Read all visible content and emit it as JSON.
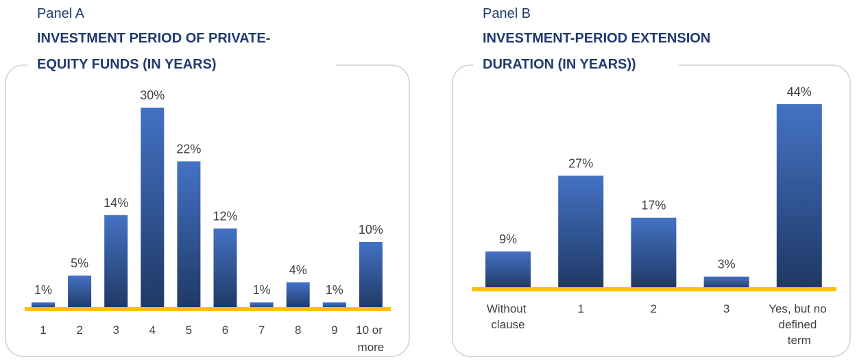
{
  "chart_data": [
    {
      "type": "bar",
      "panel": "Panel A",
      "title": [
        "INVESTMENT PERIOD OF PRIVATE-",
        "EQUITY FUNDS (IN YEARS)"
      ],
      "categories": [
        "1",
        "2",
        "3",
        "4",
        "5",
        "6",
        "7",
        "8",
        "9",
        "10 or more"
      ],
      "values": [
        1,
        5,
        14,
        30,
        22,
        12,
        1,
        4,
        1,
        10
      ],
      "value_labels": [
        "1%",
        "5%",
        "14%",
        "30%",
        "22%",
        "12%",
        "1%",
        "4%",
        "1%",
        "10%"
      ],
      "color": "#4472c4"
    },
    {
      "type": "bar",
      "panel": "Panel B",
      "title": [
        "INVESTMENT-PERIOD EXTENSION",
        "DURATION (IN YEARS))"
      ],
      "categories": [
        "Without clause",
        "1",
        "2",
        "3",
        "Yes, but no defined term"
      ],
      "values": [
        9,
        27,
        17,
        3,
        44
      ],
      "value_labels": [
        "9%",
        "27%",
        "17%",
        "3%",
        "44%"
      ],
      "color": "#4472c4"
    }
  ]
}
